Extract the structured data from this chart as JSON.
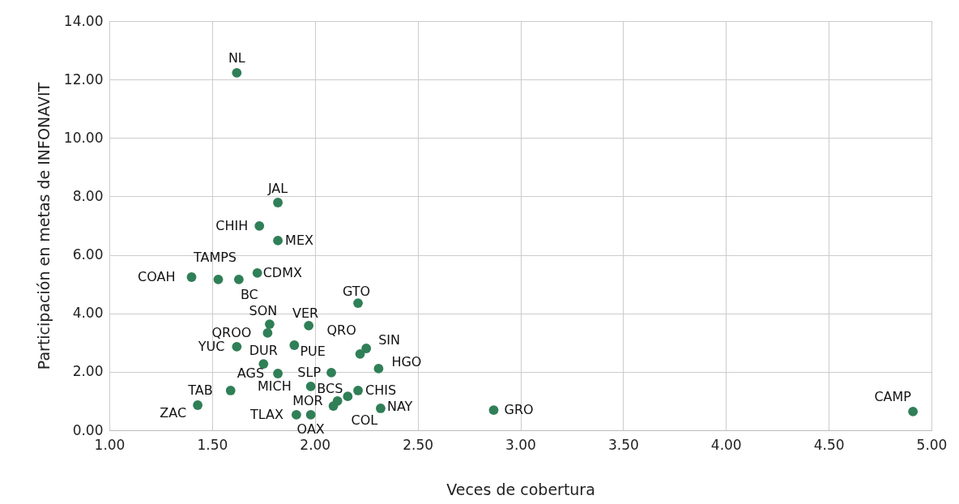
{
  "chart_data": {
    "type": "scatter",
    "xlabel": "Veces de cobertura",
    "ylabel": "Participación en metas de INFONAVIT",
    "xlim": [
      1,
      5
    ],
    "xticks": [
      {
        "value": 1,
        "label": "1.00"
      },
      {
        "value": 1.5,
        "label": "1.50"
      },
      {
        "value": 2,
        "label": "2.00"
      },
      {
        "value": 2.5,
        "label": "2.50"
      },
      {
        "value": 3,
        "label": "3.00"
      },
      {
        "value": 3.5,
        "label": "3.50"
      },
      {
        "value": 4,
        "label": "4.00"
      },
      {
        "value": 4.5,
        "label": "4.50"
      },
      {
        "value": 5,
        "label": "5.00"
      }
    ],
    "ylim": [
      0,
      14
    ],
    "yticks": [
      {
        "value": 0,
        "label": "0.00"
      },
      {
        "value": 2,
        "label": "2.00"
      },
      {
        "value": 4,
        "label": "4.00"
      },
      {
        "value": 6,
        "label": "6.00"
      },
      {
        "value": 8,
        "label": "8.00"
      },
      {
        "value": 10,
        "label": "10.00"
      },
      {
        "value": 12,
        "label": "12.00"
      },
      {
        "value": 14,
        "label": "14.00"
      }
    ],
    "grid": true,
    "marker": "circle",
    "series": [
      {
        "color": "#2f7f57",
        "x": [
          1.62,
          1.82,
          1.73,
          1.82,
          1.72,
          1.63,
          1.53,
          1.4,
          2.21,
          1.78,
          1.97,
          1.77,
          1.62,
          1.9,
          2.25,
          2.22,
          1.75,
          2.31,
          1.82,
          2.08,
          1.98,
          2.21,
          2.16,
          1.59,
          2.11,
          2.09,
          1.43,
          2.32,
          2.87,
          4.91,
          1.91,
          1.98
        ],
        "values": [
          12.23,
          7.79,
          6.99,
          6.49,
          5.38,
          5.16,
          5.16,
          5.24,
          4.35,
          3.63,
          3.58,
          3.33,
          2.86,
          2.91,
          2.8,
          2.61,
          2.27,
          2.11,
          1.94,
          1.97,
          1.5,
          1.36,
          1.16,
          1.36,
          1.0,
          0.83,
          0.86,
          0.75,
          0.69,
          0.64,
          0.53,
          0.53
        ]
      }
    ],
    "annotations": [
      {
        "text": "NL",
        "x": 1.62,
        "y": 12.23
      },
      {
        "text": "JAL",
        "x": 1.82,
        "y": 7.79
      },
      {
        "text": "CHIH",
        "x": 1.73,
        "y": 6.99
      },
      {
        "text": "MEX",
        "x": 1.82,
        "y": 6.49
      },
      {
        "text": "CDMX",
        "x": 1.72,
        "y": 5.38
      },
      {
        "text": "BC",
        "x": 1.63,
        "y": 5.16
      },
      {
        "text": "TAMPS",
        "x": 1.53,
        "y": 5.16
      },
      {
        "text": "COAH",
        "x": 1.4,
        "y": 5.24
      },
      {
        "text": "GTO",
        "x": 2.21,
        "y": 4.35
      },
      {
        "text": "SON",
        "x": 1.78,
        "y": 3.63
      },
      {
        "text": "VER",
        "x": 1.97,
        "y": 3.58
      },
      {
        "text": "QROO",
        "x": 1.77,
        "y": 3.33
      },
      {
        "text": "YUC",
        "x": 1.62,
        "y": 2.86
      },
      {
        "text": "PUE",
        "x": 1.9,
        "y": 2.91
      },
      {
        "text": "SIN",
        "x": 2.25,
        "y": 2.8
      },
      {
        "text": "QRO",
        "x": 2.22,
        "y": 2.61
      },
      {
        "text": "DUR",
        "x": 1.75,
        "y": 2.27
      },
      {
        "text": "HGO",
        "x": 2.31,
        "y": 2.11
      },
      {
        "text": "AGS",
        "x": 1.82,
        "y": 1.94
      },
      {
        "text": "SLP",
        "x": 2.08,
        "y": 1.97
      },
      {
        "text": "MICH",
        "x": 1.98,
        "y": 1.5
      },
      {
        "text": "CHIS",
        "x": 2.21,
        "y": 1.36
      },
      {
        "text": "BCS",
        "x": 2.16,
        "y": 1.16
      },
      {
        "text": "TAB",
        "x": 1.59,
        "y": 1.36
      },
      {
        "text": "MOR",
        "x": 2.11,
        "y": 1.0
      },
      {
        "text": "COL",
        "x": 2.09,
        "y": 0.83
      },
      {
        "text": "ZAC",
        "x": 1.43,
        "y": 0.86
      },
      {
        "text": "NAY",
        "x": 2.32,
        "y": 0.75
      },
      {
        "text": "GRO",
        "x": 2.87,
        "y": 0.69
      },
      {
        "text": "CAMP",
        "x": 4.91,
        "y": 0.64
      },
      {
        "text": "TLAX",
        "x": 1.91,
        "y": 0.53
      },
      {
        "text": "OAX",
        "x": 1.98,
        "y": 0.53
      }
    ]
  }
}
